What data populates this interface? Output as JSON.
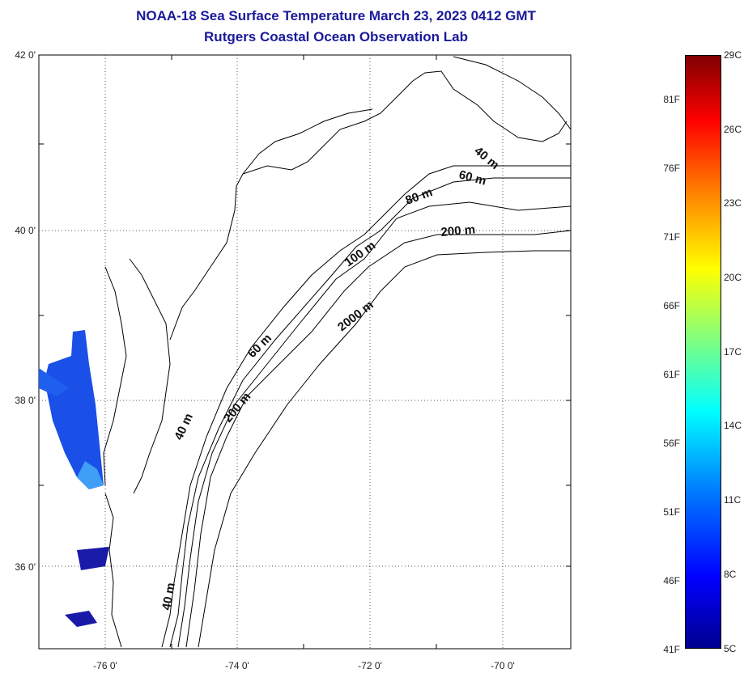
{
  "header": {
    "title": "NOAA-18 Sea Surface Temperature March 23, 2023 0412 GMT",
    "subtitle": "Rutgers Coastal Ocean Observation Lab"
  },
  "map": {
    "lat_labels": [
      "42 0'",
      "40 0'",
      "38 0'",
      "36 0'"
    ],
    "lon_labels": [
      "-76 0'",
      "-74 0'",
      "-72 0'",
      "-70 0'"
    ],
    "contour_labels": [
      "40 m",
      "60 m",
      "80 m",
      "200 m",
      "100 m",
      "60 m",
      "2000 m",
      "40 m",
      "200 m",
      "40 m"
    ],
    "colors": {
      "land_outline": "#000000",
      "grid": "#333333",
      "title": "#1a1a9a"
    }
  },
  "colorbar": {
    "fahrenheit_labels": [
      "81F",
      "76F",
      "71F",
      "66F",
      "61F",
      "56F",
      "51F",
      "46F",
      "41F"
    ],
    "celsius_labels": [
      "29C",
      "26C",
      "23C",
      "20C",
      "17C",
      "14C",
      "11C",
      "8C",
      "5C"
    ],
    "range_celsius": [
      5,
      29
    ]
  }
}
